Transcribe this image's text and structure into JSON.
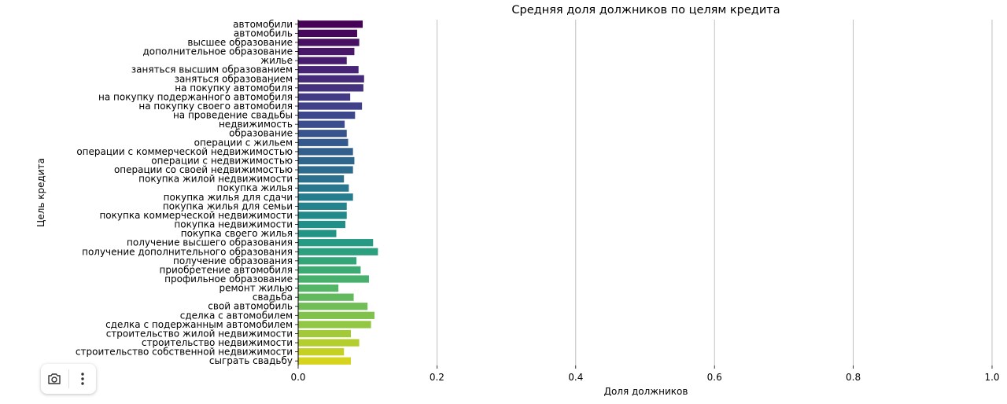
{
  "chart_data": {
    "type": "bar",
    "orientation": "horizontal",
    "title": "Средняя доля должников по целям кредита",
    "xlabel": "Доля должников",
    "ylabel": "Цель кредита",
    "xlim": [
      0.0,
      1.0
    ],
    "xticks": [
      "0.0",
      "0.2",
      "0.4",
      "0.6",
      "0.8",
      "1.0"
    ],
    "grid": "vertical",
    "colormap": "viridis",
    "categories": [
      "автомобили",
      "автомобиль",
      "высшее образование",
      "дополнительное образование",
      "жилье",
      "заняться высшим образованием",
      "заняться образованием",
      "на покупку автомобиля",
      "на покупку подержанного автомобиля",
      "на покупку своего автомобиля",
      "на проведение свадьбы",
      "недвижимость",
      "образование",
      "операции с жильем",
      "операции с коммерческой недвижимостью",
      "операции с недвижимостью",
      "операции со своей недвижимостью",
      "покупка жилой недвижимости",
      "покупка жилья",
      "покупка жилья для сдачи",
      "покупка жилья для семьи",
      "покупка коммерческой недвижимости",
      "покупка недвижимости",
      "покупка своего жилья",
      "получение высшего образования",
      "получение дополнительного образования",
      "получение образования",
      "приобретение автомобиля",
      "профильное образование",
      "ремонт жилью",
      "свадьба",
      "свой автомобиль",
      "сделка с автомобилем",
      "сделка с подержанным автомобилем",
      "строительство жилой недвижимости",
      "строительство недвижимости",
      "строительство собственной недвижимости",
      "сыграть свадьбу"
    ],
    "values": [
      0.093,
      0.085,
      0.088,
      0.081,
      0.07,
      0.087,
      0.095,
      0.094,
      0.075,
      0.092,
      0.082,
      0.067,
      0.07,
      0.072,
      0.079,
      0.081,
      0.079,
      0.066,
      0.073,
      0.079,
      0.07,
      0.07,
      0.068,
      0.055,
      0.108,
      0.115,
      0.084,
      0.09,
      0.102,
      0.058,
      0.08,
      0.1,
      0.11,
      0.105,
      0.076,
      0.088,
      0.066,
      0.076
    ],
    "colors": [
      "#450256",
      "#47085c",
      "#481062",
      "#481769",
      "#481d6f",
      "#472475",
      "#462b7a",
      "#44327f",
      "#423a84",
      "#404188",
      "#3d478b",
      "#3a4d8d",
      "#37548d",
      "#345a8d",
      "#32608d",
      "#2f668e",
      "#2d6c8e",
      "#2b718e",
      "#28778e",
      "#267d8e",
      "#24838d",
      "#22898b",
      "#218f89",
      "#229486",
      "#269a82",
      "#2c9f7e",
      "#34a579",
      "#3daa74",
      "#48b06d",
      "#55b566",
      "#62b95e",
      "#71be56",
      "#81c24d",
      "#91c743",
      "#a2ca38",
      "#b3ce2d",
      "#c5d122",
      "#d6d41c"
    ]
  },
  "toolbar": {
    "camera_icon": "camera-icon",
    "more_icon": "more-vertical-icon"
  }
}
